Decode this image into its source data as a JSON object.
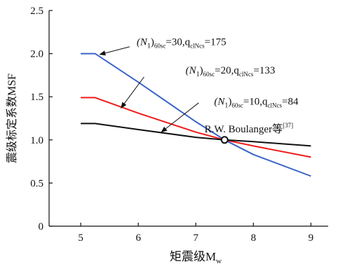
{
  "chart_data": {
    "type": "line",
    "xlabel": "矩震级M",
    "xlabel_sub": "w",
    "ylabel": "震级标定系数MSF",
    "xlim": [
      4.45,
      9.3
    ],
    "ylim": [
      0,
      2.5
    ],
    "xticks": [
      5,
      6,
      7,
      8,
      9
    ],
    "yticks": [
      0,
      0.5,
      1.0,
      1.5,
      2.0,
      2.5
    ],
    "ytick_labels": [
      "0",
      "0.5",
      "1.0",
      "1.5",
      "2.0",
      "2.5"
    ],
    "grid": false,
    "series": [
      {
        "id": "n30",
        "color": "#3a64c8",
        "points": [
          [
            5,
            2.0
          ],
          [
            5.25,
            2.0
          ],
          [
            6,
            1.67
          ],
          [
            7,
            1.21
          ],
          [
            7.5,
            1.0
          ],
          [
            8,
            0.83
          ],
          [
            9,
            0.58
          ]
        ]
      },
      {
        "id": "n20",
        "color": "#ee1c1c",
        "points": [
          [
            5,
            1.49
          ],
          [
            5.25,
            1.49
          ],
          [
            6,
            1.31
          ],
          [
            7,
            1.09
          ],
          [
            7.5,
            1.0
          ],
          [
            8,
            0.93
          ],
          [
            9,
            0.8
          ]
        ]
      },
      {
        "id": "n10",
        "color": "#111111",
        "points": [
          [
            5,
            1.19
          ],
          [
            5.25,
            1.19
          ],
          [
            6,
            1.12
          ],
          [
            7,
            1.03
          ],
          [
            7.5,
            1.0
          ],
          [
            8,
            0.98
          ],
          [
            9,
            0.93
          ]
        ]
      }
    ],
    "annotations": [
      {
        "id": "n30",
        "prefix": "(N",
        "s1": "1",
        "mid": ")",
        "s2": "60sc",
        "after": "=30,q",
        "s3": "clNcs",
        "tail": "=175",
        "pos": [
          6.75,
          2.14
        ],
        "arrow_from": [
          5.85,
          2.08
        ],
        "arrow_to": [
          5.33,
          1.99
        ]
      },
      {
        "id": "n20",
        "prefix": "(N",
        "s1": "1",
        "mid": ")",
        "s2": "60sc",
        "after": "=20,q",
        "s3": "clNcs",
        "tail": "=133",
        "pos": [
          7.6,
          1.81
        ],
        "arrow_from": [
          6.1,
          1.73
        ],
        "arrow_to": [
          5.7,
          1.37
        ]
      },
      {
        "id": "n10",
        "prefix": "(N",
        "s1": "1",
        "mid": ")",
        "s2": "60sc",
        "after": "=10,q",
        "s3": "clNcs",
        "tail": "=84",
        "pos": [
          8.05,
          1.45
        ],
        "arrow_from": [
          7.05,
          1.43
        ],
        "arrow_to": [
          6.4,
          1.09
        ]
      }
    ],
    "point_label": {
      "text": "R.W. Boulanger等",
      "sup": "[37]",
      "x": 7.5,
      "y": 1.0,
      "label_pos": [
        7.15,
        1.13
      ]
    }
  }
}
